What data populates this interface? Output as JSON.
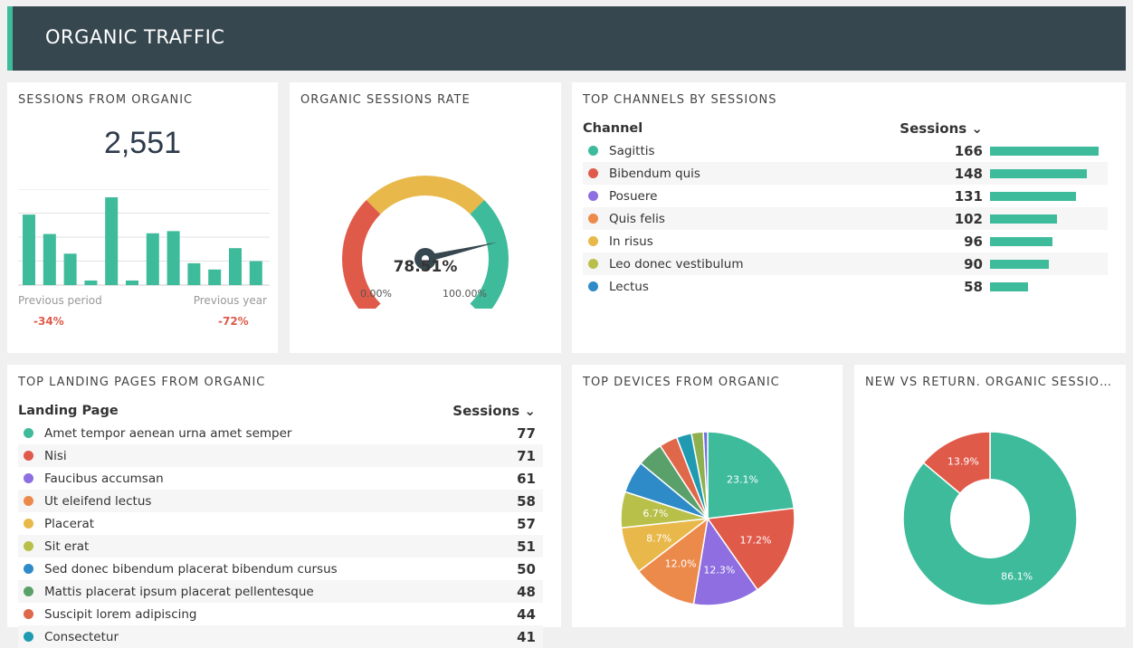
{
  "header": {
    "title": "ORGANIC TRAFFIC"
  },
  "sessions": {
    "title": "SESSIONS FROM ORGANIC",
    "value": "2,551",
    "prev_period_label": "Previous period",
    "prev_period_value": "-34%",
    "prev_year_label": "Previous year",
    "prev_year_value": "-72%",
    "bars": [
      2.94,
      2.13,
      1.31,
      0.19,
      3.66,
      0.19,
      2.16,
      2.25,
      0.91,
      0.65,
      1.54,
      1.0
    ]
  },
  "rate": {
    "title": "ORGANIC SESSIONS RATE",
    "value": "78.51%",
    "percent": 78.51,
    "min_label": "0.00%",
    "max_label": "100.00%"
  },
  "channels": {
    "title": "TOP CHANNELS BY SESSIONS",
    "col1": "Channel",
    "col2": "Sessions",
    "rows": [
      {
        "label": "Sagittis",
        "value": 166,
        "color": "#3dbb9b"
      },
      {
        "label": "Bibendum quis",
        "value": 148,
        "color": "#e05a4a"
      },
      {
        "label": "Posuere",
        "value": 131,
        "color": "#8e6ee0"
      },
      {
        "label": "Quis felis",
        "value": 102,
        "color": "#ec8a4c"
      },
      {
        "label": "In risus",
        "value": 96,
        "color": "#e8b84a"
      },
      {
        "label": "Leo donec vestibulum",
        "value": 90,
        "color": "#b8c04a"
      },
      {
        "label": "Lectus",
        "value": 58,
        "color": "#2e8bc8"
      }
    ]
  },
  "landing": {
    "title": "TOP LANDING PAGES FROM ORGANIC",
    "col1": "Landing Page",
    "col2": "Sessions",
    "rows": [
      {
        "label": "Amet tempor aenean urna amet semper",
        "value": 77,
        "color": "#3dbb9b"
      },
      {
        "label": "Nisi",
        "value": 71,
        "color": "#e05a4a"
      },
      {
        "label": "Faucibus accumsan",
        "value": 61,
        "color": "#8e6ee0"
      },
      {
        "label": "Ut eleifend lectus",
        "value": 58,
        "color": "#ec8a4c"
      },
      {
        "label": "Placerat",
        "value": 57,
        "color": "#e8b84a"
      },
      {
        "label": "Sit erat",
        "value": 51,
        "color": "#b8c04a"
      },
      {
        "label": "Sed donec bibendum placerat bibendum cursus",
        "value": 50,
        "color": "#2e8bc8"
      },
      {
        "label": "Mattis placerat ipsum placerat pellentesque",
        "value": 48,
        "color": "#5aa06a"
      },
      {
        "label": "Suscipit lorem adipiscing",
        "value": 44,
        "color": "#e0684a"
      },
      {
        "label": "Consectetur",
        "value": 41,
        "color": "#1f9ab0"
      }
    ]
  },
  "devices": {
    "title": "TOP DEVICES FROM ORGANIC"
  },
  "newret": {
    "title": "NEW VS RETURN. ORGANIC SESSIONS"
  },
  "chart_data": [
    {
      "type": "pie",
      "title": "TOP DEVICES FROM ORGANIC",
      "values": [
        23.1,
        17.2,
        12.3,
        12.0,
        8.7,
        6.7,
        6.0,
        4.8,
        3.4,
        2.8,
        2.2,
        0.8
      ],
      "labels": [
        "23.1%",
        "17.2%",
        "12.3%",
        "12.0%",
        "8.7%",
        "6.7%",
        "",
        "",
        "",
        "",
        "",
        ""
      ],
      "colors": [
        "#3dbb9b",
        "#e05a4a",
        "#8e6ee0",
        "#ec8a4c",
        "#e8b84a",
        "#b8c04a",
        "#2e8bc8",
        "#5aa06a",
        "#e0684a",
        "#1f9ab0",
        "#8fb050",
        "#6a70e0"
      ]
    },
    {
      "type": "pie",
      "title": "NEW VS RETURN. ORGANIC SESSIONS",
      "donut": true,
      "values": [
        86.1,
        13.9
      ],
      "labels": [
        "86.1%",
        "13.9%"
      ],
      "colors": [
        "#3dbb9b",
        "#e05a4a"
      ]
    }
  ]
}
